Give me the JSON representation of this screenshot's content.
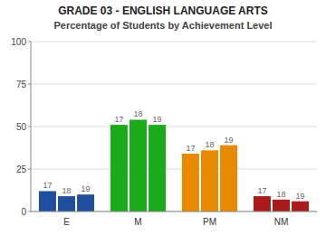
{
  "chart_data": {
    "type": "bar",
    "title": "GRADE 03 - ENGLISH LANGUAGE ARTS",
    "subtitle": "Percentage of Students by Achievement Level",
    "categories": [
      "E",
      "M",
      "PM",
      "NM"
    ],
    "series": [
      {
        "name": "17",
        "values": [
          12,
          51,
          34,
          9
        ]
      },
      {
        "name": "18",
        "values": [
          9,
          54,
          36,
          7
        ]
      },
      {
        "name": "19",
        "values": [
          10,
          51,
          39,
          6
        ]
      }
    ],
    "colors": [
      "#1f4e9c",
      "#1aaa1a",
      "#e88a00",
      "#aa1a1a"
    ],
    "ylim": [
      0,
      100
    ],
    "yticks": [
      0,
      25,
      50,
      75,
      100
    ],
    "grid": true
  }
}
